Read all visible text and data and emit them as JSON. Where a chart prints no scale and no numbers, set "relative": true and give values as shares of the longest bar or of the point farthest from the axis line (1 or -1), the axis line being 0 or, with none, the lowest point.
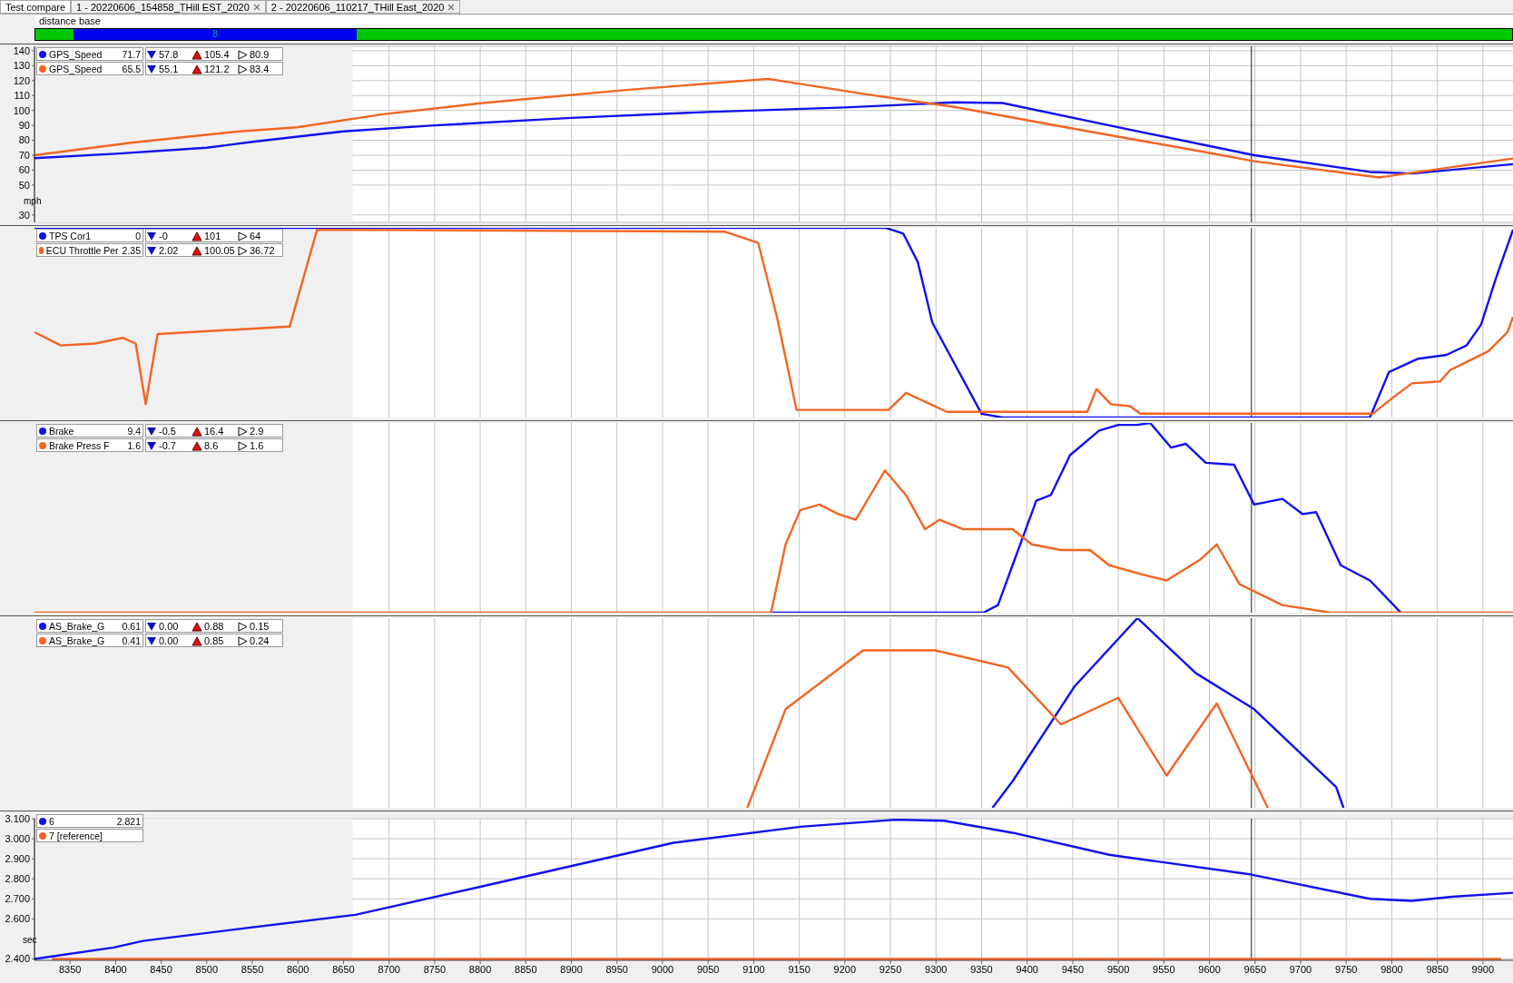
{
  "chart_data": [
    {
      "type": "other",
      "annotations": [
        "Test compare",
        "1 - 20220606_154858_THill EST_2020",
        "2 - 20220606_110217_THill East_2020",
        "distance base",
        "8"
      ]
    },
    {
      "type": "line",
      "ylabel": "mph",
      "xlim": [
        8311,
        9933
      ],
      "xticks": [
        8350,
        8400,
        8450,
        8500,
        8550,
        8600,
        8650,
        8700,
        8750,
        8800,
        8850,
        8900,
        8950,
        9000,
        9050,
        9100,
        9150,
        9200,
        9250,
        9300,
        9350,
        9400,
        9450,
        9500,
        9550,
        9600,
        9650,
        9700,
        9750,
        9800,
        9850,
        9900
      ],
      "ylim": [
        25,
        143
      ],
      "yticks": [
        30,
        50,
        60,
        70,
        80,
        90,
        100,
        110,
        120,
        130,
        140
      ],
      "grid": true,
      "tick_labels": "y",
      "legend": "top left",
      "bands": [
        {
          "axis": "x",
          "from": 8311,
          "to": 8660,
          "color": "#f0f0f0"
        }
      ],
      "ref_lines": [
        {
          "axis": "x",
          "value": 9646,
          "color": "#404040"
        }
      ],
      "annotations": [
        "71.7",
        "57.8",
        "105.4",
        "80.9",
        "65.5",
        "55.1",
        "121.2",
        "83.4"
      ],
      "series": [
        {
          "name": "GPS_Speed",
          "color": "#1010f0",
          "x": [
            8311,
            8400,
            8500,
            8550,
            8650,
            8750,
            8900,
            9050,
            9200,
            9320,
            9373,
            9490,
            9649,
            9776,
            9823,
            9933
          ],
          "values": [
            68,
            71,
            75,
            79,
            86,
            90,
            95,
            99,
            102,
            105.4,
            105,
            90,
            70,
            58.8,
            57.8,
            64
          ]
        },
        {
          "name": "GPS_Speed",
          "color": "#f26522",
          "x": [
            8311,
            8419,
            8536,
            8599,
            8695,
            8800,
            8960,
            9116,
            9225,
            9320,
            9437,
            9596,
            9649,
            9786,
            9933
          ],
          "values": [
            70,
            78.5,
            86,
            88.7,
            97.6,
            104.8,
            113.7,
            121.2,
            110.7,
            102.4,
            89.3,
            72,
            66,
            55.1,
            67.8
          ]
        }
      ]
    },
    {
      "type": "line",
      "relative": true,
      "xlim": [
        8311,
        9933
      ],
      "xticks": [
        8350,
        8400,
        8450,
        8500,
        8550,
        8600,
        8650,
        8700,
        8750,
        8800,
        8850,
        8900,
        8950,
        9000,
        9050,
        9100,
        9150,
        9200,
        9250,
        9300,
        9350,
        9400,
        9450,
        9500,
        9550,
        9600,
        9650,
        9700,
        9750,
        9800,
        9850,
        9900
      ],
      "grid": "x",
      "tick_labels": false,
      "legend": "top left",
      "bands": [
        {
          "axis": "x",
          "from": 8311,
          "to": 8660,
          "color": "#f0f0f0"
        }
      ],
      "ref_lines": [
        {
          "axis": "x",
          "value": 9646,
          "color": "#404040"
        }
      ],
      "annotations": [
        "0",
        "-0",
        "101",
        "64",
        "2.35",
        "2.02",
        "100.05",
        "36.72"
      ],
      "series": [
        {
          "name": "TPS Cor1",
          "color": "#1010f0",
          "x": [
            8311,
            9245,
            9264,
            9280,
            9296,
            9350,
            9373,
            9776,
            9797,
            9829,
            9860,
            9882,
            9898,
            9914,
            9933
          ],
          "values": [
            1,
            1,
            0.97,
            0.82,
            0.5,
            0.02,
            0,
            0,
            0.24,
            0.31,
            0.33,
            0.38,
            0.49,
            0.73,
            0.99
          ]
        },
        {
          "name": "ECU Throttle Per",
          "color": "#f26522",
          "x": [
            8311,
            8340,
            8377,
            8408,
            8422,
            8433,
            8446,
            8591,
            8621,
            9068,
            9105,
            9126,
            9147,
            9248,
            9267,
            9312,
            9466,
            9476,
            9492,
            9513,
            9524,
            9779,
            9800,
            9822,
            9853,
            9864,
            9885,
            9906,
            9927,
            9933
          ],
          "values": [
            0.45,
            0.38,
            0.39,
            0.42,
            0.39,
            0.07,
            0.44,
            0.48,
            0.99,
            0.98,
            0.92,
            0.52,
            0.04,
            0.04,
            0.13,
            0.03,
            0.03,
            0.15,
            0.07,
            0.06,
            0.02,
            0.02,
            0.1,
            0.18,
            0.19,
            0.25,
            0.3,
            0.35,
            0.45,
            0.53
          ]
        }
      ]
    },
    {
      "type": "line",
      "relative": true,
      "xlim": [
        8311,
        9933
      ],
      "xticks": [
        8350,
        8400,
        8450,
        8500,
        8550,
        8600,
        8650,
        8700,
        8750,
        8800,
        8850,
        8900,
        8950,
        9000,
        9050,
        9100,
        9150,
        9200,
        9250,
        9300,
        9350,
        9400,
        9450,
        9500,
        9550,
        9600,
        9650,
        9700,
        9750,
        9800,
        9850,
        9900
      ],
      "grid": "x",
      "tick_labels": false,
      "legend": "top left",
      "bands": [
        {
          "axis": "x",
          "from": 8311,
          "to": 8660,
          "color": "#f0f0f0"
        }
      ],
      "ref_lines": [
        {
          "axis": "x",
          "value": 9646,
          "color": "#404040"
        }
      ],
      "annotations": [
        "9.4",
        "-0.5",
        "16.4",
        "2.9",
        "1.6",
        "-0.7",
        "8.6",
        "1.6"
      ],
      "series": [
        {
          "name": "Brake",
          "color": "#1010f0",
          "x": [
            9119,
            9352,
            9368,
            9384,
            9410,
            9426,
            9447,
            9479,
            9500,
            9521,
            9535,
            9558,
            9574,
            9596,
            9627,
            9649,
            9680,
            9702,
            9717,
            9744,
            9776,
            9810
          ],
          "values": [
            0,
            0,
            0.04,
            0.25,
            0.59,
            0.62,
            0.83,
            0.96,
            0.99,
            0.99,
            1,
            0.87,
            0.89,
            0.79,
            0.78,
            0.57,
            0.6,
            0.52,
            0.53,
            0.25,
            0.17,
            0
          ]
        },
        {
          "name": "Brake Press F",
          "color": "#f26522",
          "x": [
            8311,
            9119,
            9135,
            9151,
            9172,
            9193,
            9212,
            9244,
            9267,
            9288,
            9304,
            9330,
            9384,
            9405,
            9437,
            9469,
            9490,
            9527,
            9553,
            9590,
            9608,
            9633,
            9680,
            9733,
            9933
          ],
          "values": [
            0,
            0,
            0.36,
            0.54,
            0.57,
            0.52,
            0.49,
            0.75,
            0.62,
            0.44,
            0.49,
            0.44,
            0.44,
            0.36,
            0.33,
            0.33,
            0.25,
            0.2,
            0.17,
            0.28,
            0.36,
            0.15,
            0.04,
            0,
            0
          ]
        }
      ]
    },
    {
      "type": "line",
      "relative": true,
      "xlim": [
        8311,
        9933
      ],
      "xticks": [
        8350,
        8400,
        8450,
        8500,
        8550,
        8600,
        8650,
        8700,
        8750,
        8800,
        8850,
        8900,
        8950,
        9000,
        9050,
        9100,
        9150,
        9200,
        9250,
        9300,
        9350,
        9400,
        9450,
        9500,
        9550,
        9600,
        9650,
        9700,
        9750,
        9800,
        9850,
        9900
      ],
      "grid": "x",
      "tick_labels": false,
      "legend": "top left",
      "bands": [
        {
          "axis": "x",
          "from": 8311,
          "to": 8660,
          "color": "#f0f0f0"
        }
      ],
      "ref_lines": [
        {
          "axis": "x",
          "value": 9646,
          "color": "#404040"
        }
      ],
      "annotations": [
        "0.61",
        "0.00",
        "0.88",
        "0.15",
        "0.41",
        "0.00",
        "0.85",
        "0.24"
      ],
      "series": [
        {
          "name": "AS_Brake_G",
          "color": "#1010f0",
          "x": [
            9362,
            9384,
            9452,
            9521,
            9585,
            9649,
            9739,
            9747
          ],
          "values": [
            0,
            0.14,
            0.64,
            1,
            0.71,
            0.52,
            0.11,
            0
          ]
        },
        {
          "name": "AS_Brake_G",
          "color": "#f26522",
          "x": [
            9093,
            9135,
            9220,
            9299,
            9379,
            9437,
            9500,
            9553,
            9608,
            9664
          ],
          "values": [
            0,
            0.52,
            0.83,
            0.83,
            0.74,
            0.44,
            0.58,
            0.17,
            0.55,
            0
          ]
        }
      ]
    },
    {
      "type": "line",
      "ylabel": "sec",
      "xlim": [
        8311,
        9933
      ],
      "xticks": [
        8350,
        8400,
        8450,
        8500,
        8550,
        8600,
        8650,
        8700,
        8750,
        8800,
        8850,
        8900,
        8950,
        9000,
        9050,
        9100,
        9150,
        9200,
        9250,
        9300,
        9350,
        9400,
        9450,
        9500,
        9550,
        9600,
        9650,
        9700,
        9750,
        9800,
        9850,
        9900
      ],
      "ylim": [
        2.393,
        3.1
      ],
      "yticks": [
        {
          "value": 2.4,
          "label": "2.400"
        },
        {
          "value": 2.6,
          "label": "2.600"
        },
        {
          "value": 2.7,
          "label": "2.700"
        },
        {
          "value": 2.8,
          "label": "2.800"
        },
        {
          "value": 2.9,
          "label": "2.900"
        },
        {
          "value": 3.0,
          "label": "3.000"
        },
        {
          "value": 3.1,
          "label": "3.100"
        }
      ],
      "grid": true,
      "legend": "top left",
      "bands": [
        {
          "axis": "x",
          "from": 8311,
          "to": 8660,
          "color": "#f0f0f0"
        }
      ],
      "ref_lines": [
        {
          "axis": "x",
          "value": 9646,
          "color": "#404040"
        }
      ],
      "annotations": [
        "2.821"
      ],
      "series": [
        {
          "name": "6",
          "color": "#1010f0",
          "x": [
            8311,
            8398,
            8430,
            8536,
            8663,
            8800,
            9012,
            9151,
            9256,
            9309,
            9384,
            9490,
            9646,
            9776,
            9822,
            9866,
            9933
          ],
          "values": [
            2.4,
            2.457,
            2.49,
            2.55,
            2.62,
            2.76,
            2.98,
            3.06,
            3.095,
            3.09,
            3.03,
            2.92,
            2.821,
            2.7,
            2.69,
            2.71,
            2.73
          ]
        },
        {
          "name": "7 [reference]",
          "color": "#f26522",
          "x": [
            8330,
            9920
          ],
          "values": [
            2.4,
            2.4
          ]
        }
      ]
    }
  ]
}
